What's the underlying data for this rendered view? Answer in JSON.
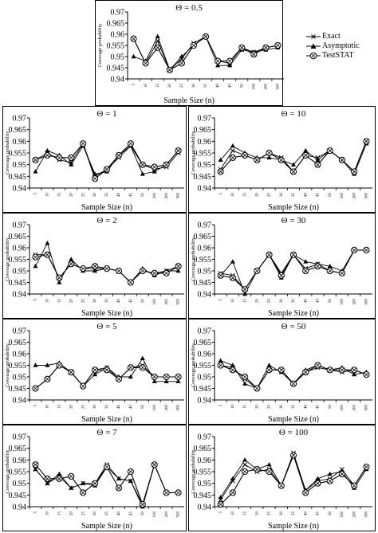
{
  "chart_data": [
    {
      "type": "line",
      "title": "Θ = 0.5",
      "xlabel": "Sample Size (n)",
      "ylabel": "Coverage probability",
      "ylim": [
        0.94,
        0.97
      ],
      "yticks": [
        "0.94",
        "0.945",
        "0.95",
        "0.955",
        "0.96",
        "0.965",
        "0.97"
      ],
      "categories": [
        "5",
        "10",
        "15",
        "20",
        "25",
        "30",
        "35",
        "40",
        "45",
        "50",
        "100",
        "200",
        "500"
      ],
      "series": [
        {
          "name": "Exact",
          "values": [
            0.958,
            0.947,
            0.957,
            0.944,
            0.949,
            0.956,
            0.959,
            0.948,
            0.947,
            0.954,
            0.952,
            0.954,
            0.955
          ]
        },
        {
          "name": "Asymptotic",
          "values": [
            0.95,
            0.948,
            0.959,
            0.944,
            0.95,
            0.955,
            0.959,
            0.946,
            0.946,
            0.953,
            0.952,
            0.953,
            0.954
          ]
        },
        {
          "name": "TestSTAT",
          "values": [
            0.958,
            0.947,
            0.954,
            0.944,
            0.947,
            0.955,
            0.959,
            0.948,
            0.948,
            0.954,
            0.951,
            0.954,
            0.955
          ]
        }
      ]
    },
    {
      "type": "line",
      "title": "Θ = 1",
      "xlabel": "Sample Size (n)",
      "ylabel": "Coverage probability",
      "ylim": [
        0.94,
        0.97
      ],
      "yticks": [
        "0.94",
        "0.945",
        "0.95",
        "0.955",
        "0.96",
        "0.965",
        "0.97"
      ],
      "categories": [
        "5",
        "10",
        "15",
        "20",
        "25",
        "30",
        "35",
        "40",
        "45",
        "50",
        "100",
        "200",
        "500"
      ],
      "series": [
        {
          "name": "Exact",
          "values": [
            0.952,
            0.955,
            0.952,
            0.951,
            0.959,
            0.945,
            0.948,
            0.953,
            0.958,
            0.95,
            0.948,
            0.949,
            0.955
          ]
        },
        {
          "name": "Asymptotic",
          "values": [
            0.947,
            0.956,
            0.954,
            0.95,
            0.958,
            0.946,
            0.947,
            0.954,
            0.958,
            0.946,
            0.947,
            0.95,
            0.956
          ]
        },
        {
          "name": "TestSTAT",
          "values": [
            0.952,
            0.954,
            0.953,
            0.953,
            0.959,
            0.944,
            0.948,
            0.954,
            0.959,
            0.95,
            0.949,
            0.95,
            0.956
          ]
        }
      ]
    },
    {
      "type": "line",
      "title": "Θ = 10",
      "xlabel": "Sample Size (n)",
      "ylabel": "Coverage probability",
      "ylim": [
        0.94,
        0.97
      ],
      "yticks": [
        "0.94",
        "0.945",
        "0.95",
        "0.955",
        "0.96",
        "0.965",
        "0.97"
      ],
      "categories": [
        "5",
        "10",
        "15",
        "20",
        "25",
        "30",
        "35",
        "40",
        "45",
        "50",
        "100",
        "200",
        "500"
      ],
      "series": [
        {
          "name": "Exact",
          "values": [
            0.948,
            0.956,
            0.954,
            0.952,
            0.955,
            0.953,
            0.947,
            0.954,
            0.953,
            0.956,
            0.952,
            0.947,
            0.96
          ]
        },
        {
          "name": "Asymptotic",
          "values": [
            0.952,
            0.958,
            0.955,
            0.953,
            0.953,
            0.952,
            0.95,
            0.956,
            0.952,
            0.956,
            0.952,
            0.946,
            0.959
          ]
        },
        {
          "name": "TestSTAT",
          "values": [
            0.947,
            0.953,
            0.954,
            0.952,
            0.955,
            0.952,
            0.947,
            0.954,
            0.95,
            0.956,
            0.952,
            0.947,
            0.96
          ]
        }
      ]
    },
    {
      "type": "line",
      "title": "Θ = 2",
      "xlabel": "Sample Size (n)",
      "ylabel": "Coverage probability",
      "ylim": [
        0.94,
        0.97
      ],
      "yticks": [
        "0.94",
        "0.945",
        "0.95",
        "0.955",
        "0.96",
        "0.965",
        "0.97"
      ],
      "categories": [
        "5",
        "10",
        "15",
        "20",
        "25",
        "30",
        "35",
        "40",
        "45",
        "50",
        "100",
        "200",
        "500"
      ],
      "series": [
        {
          "name": "Exact",
          "values": [
            0.957,
            0.957,
            0.947,
            0.953,
            0.951,
            0.951,
            0.951,
            0.95,
            0.945,
            0.95,
            0.949,
            0.95,
            0.952
          ]
        },
        {
          "name": "Asymptotic",
          "values": [
            0.952,
            0.962,
            0.945,
            0.955,
            0.95,
            0.95,
            0.951,
            0.95,
            0.945,
            0.951,
            0.948,
            0.95,
            0.95
          ]
        },
        {
          "name": "TestSTAT",
          "values": [
            0.956,
            0.957,
            0.947,
            0.953,
            0.951,
            0.952,
            0.951,
            0.95,
            0.945,
            0.95,
            0.949,
            0.949,
            0.952
          ]
        }
      ]
    },
    {
      "type": "line",
      "title": "Θ = 30",
      "xlabel": "Sample Size (n)",
      "ylabel": "Coverage probability",
      "ylim": [
        0.94,
        0.97
      ],
      "yticks": [
        "0.94",
        "0.945",
        "0.95",
        "0.955",
        "0.96",
        "0.965",
        "0.97"
      ],
      "categories": [
        "5",
        "10",
        "15",
        "20",
        "25",
        "30",
        "35",
        "40",
        "45",
        "50",
        "100",
        "200",
        "500"
      ],
      "series": [
        {
          "name": "Exact",
          "values": [
            0.949,
            0.948,
            0.942,
            0.95,
            0.957,
            0.949,
            0.957,
            0.951,
            0.953,
            0.95,
            0.949,
            0.959,
            0.959
          ]
        },
        {
          "name": "Asymptotic",
          "values": [
            0.948,
            0.954,
            0.94,
            0.95,
            0.957,
            0.947,
            0.957,
            0.954,
            0.953,
            0.952,
            0.95,
            0.959,
            0.959
          ]
        },
        {
          "name": "TestSTAT",
          "values": [
            0.948,
            0.947,
            0.942,
            0.95,
            0.957,
            0.948,
            0.957,
            0.95,
            0.952,
            0.95,
            0.949,
            0.959,
            0.959
          ]
        }
      ]
    },
    {
      "type": "line",
      "title": "Θ = 5",
      "xlabel": "Sample Size (n)",
      "ylabel": "Coverage probability",
      "ylim": [
        0.94,
        0.97
      ],
      "yticks": [
        "0.94",
        "0.945",
        "0.95",
        "0.955",
        "0.96",
        "0.965",
        "0.97"
      ],
      "categories": [
        "5",
        "10",
        "15",
        "20",
        "25",
        "30",
        "35",
        "40",
        "45",
        "50",
        "100",
        "200",
        "500"
      ],
      "series": [
        {
          "name": "Exact",
          "values": [
            0.945,
            0.949,
            0.955,
            0.952,
            0.946,
            0.953,
            0.954,
            0.949,
            0.954,
            0.955,
            0.95,
            0.95,
            0.95
          ]
        },
        {
          "name": "Asymptotic",
          "values": [
            0.955,
            0.955,
            0.956,
            0.952,
            0.946,
            0.951,
            0.954,
            0.95,
            0.95,
            0.958,
            0.948,
            0.948,
            0.948
          ]
        },
        {
          "name": "TestSTAT",
          "values": [
            0.945,
            0.949,
            0.955,
            0.952,
            0.946,
            0.953,
            0.953,
            0.949,
            0.954,
            0.954,
            0.95,
            0.95,
            0.95
          ]
        }
      ]
    },
    {
      "type": "line",
      "title": "Θ = 50",
      "xlabel": "Sample Size (n)",
      "ylabel": "Coverage probability",
      "ylim": [
        0.94,
        0.97
      ],
      "yticks": [
        "0.94",
        "0.945",
        "0.95",
        "0.955",
        "0.96",
        "0.965",
        "0.97"
      ],
      "categories": [
        "5",
        "10",
        "15",
        "20",
        "25",
        "30",
        "35",
        "40",
        "45",
        "50",
        "100",
        "200",
        "500"
      ],
      "series": [
        {
          "name": "Exact",
          "values": [
            0.955,
            0.954,
            0.949,
            0.945,
            0.953,
            0.953,
            0.947,
            0.952,
            0.954,
            0.953,
            0.952,
            0.953,
            0.951
          ]
        },
        {
          "name": "Asymptotic",
          "values": [
            0.957,
            0.955,
            0.947,
            0.945,
            0.955,
            0.952,
            0.947,
            0.953,
            0.955,
            0.953,
            0.954,
            0.951,
            0.952
          ]
        },
        {
          "name": "TestSTAT",
          "values": [
            0.955,
            0.953,
            0.95,
            0.945,
            0.953,
            0.953,
            0.947,
            0.952,
            0.955,
            0.953,
            0.953,
            0.953,
            0.951
          ]
        }
      ]
    },
    {
      "type": "line",
      "title": "Θ = 7",
      "xlabel": "Sample Size (n)",
      "ylabel": "Coverage probability",
      "ylim": [
        0.94,
        0.97
      ],
      "yticks": [
        "0.94",
        "0.945",
        "0.95",
        "0.955",
        "0.96",
        "0.965",
        "0.97"
      ],
      "categories": [
        "5",
        "10",
        "15",
        "20",
        "25",
        "30",
        "35",
        "40",
        "45",
        "50",
        "100",
        "200",
        "500"
      ],
      "series": [
        {
          "name": "Exact",
          "values": [
            0.956,
            0.95,
            0.953,
            0.948,
            0.95,
            0.95,
            0.958,
            0.952,
            0.951,
            0.941,
            0.958,
            0.946,
            0.946
          ]
        },
        {
          "name": "Asymptotic",
          "values": [
            0.956,
            0.95,
            0.954,
            0.948,
            0.95,
            0.949,
            0.957,
            0.952,
            0.951,
            0.94,
            0.958,
            0.946,
            0.946
          ]
        },
        {
          "name": "TestSTAT",
          "values": [
            0.958,
            0.952,
            0.952,
            0.953,
            0.946,
            0.95,
            0.957,
            0.948,
            0.955,
            0.941,
            0.958,
            0.946,
            0.946
          ]
        }
      ]
    },
    {
      "type": "line",
      "title": "Θ = 100",
      "xlabel": "Sample Size (n)",
      "ylabel": "Coverage probability",
      "ylim": [
        0.94,
        0.97
      ],
      "yticks": [
        "0.94",
        "0.945",
        "0.95",
        "0.955",
        "0.96",
        "0.965",
        "0.97"
      ],
      "categories": [
        "5",
        "10",
        "15",
        "20",
        "25",
        "30",
        "35",
        "40",
        "45",
        "50",
        "100",
        "200",
        "500"
      ],
      "series": [
        {
          "name": "Exact",
          "values": [
            0.943,
            0.951,
            0.958,
            0.955,
            0.956,
            0.949,
            0.963,
            0.947,
            0.951,
            0.952,
            0.956,
            0.949,
            0.957
          ]
        },
        {
          "name": "Asymptotic",
          "values": [
            0.944,
            0.952,
            0.96,
            0.956,
            0.958,
            0.949,
            0.962,
            0.947,
            0.952,
            0.954,
            0.955,
            0.948,
            0.956
          ]
        },
        {
          "name": "TestSTAT",
          "values": [
            0.941,
            0.946,
            0.955,
            0.956,
            0.955,
            0.949,
            0.962,
            0.946,
            0.95,
            0.951,
            0.954,
            0.949,
            0.957
          ]
        }
      ]
    }
  ],
  "legend": {
    "items": [
      {
        "name": "Exact",
        "marker": "x-icon"
      },
      {
        "name": "Asymptotic",
        "marker": "triangle-icon"
      },
      {
        "name": "TestSTAT",
        "marker": "circle-cross-icon"
      }
    ]
  },
  "colors": {
    "line": "#000000",
    "frame": "#000000",
    "background": "#ffffff"
  }
}
